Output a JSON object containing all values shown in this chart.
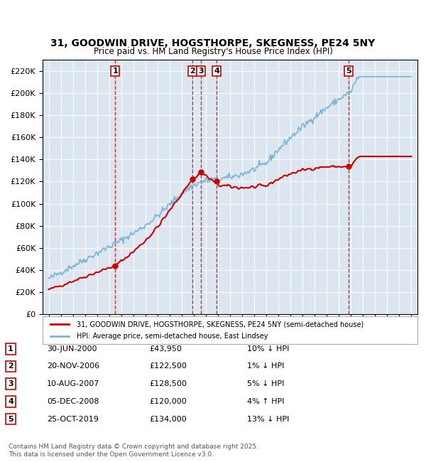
{
  "title1": "31, GOODWIN DRIVE, HOGSTHORPE, SKEGNESS, PE24 5NY",
  "title2": "Price paid vs. HM Land Registry's House Price Index (HPI)",
  "ylabel": "",
  "xlabel": "",
  "background_color": "#dce6f1",
  "plot_bg_color": "#dce6f1",
  "legend_entries": [
    "31, GOODWIN DRIVE, HOGSTHORPE, SKEGNESS, PE24 5NY (semi-detached house)",
    "HPI: Average price, semi-detached house, East Lindsey"
  ],
  "table_rows": [
    [
      "1",
      "30-JUN-2000",
      "£43,950",
      "10% ↓ HPI"
    ],
    [
      "2",
      "20-NOV-2006",
      "£122,500",
      "1% ↓ HPI"
    ],
    [
      "3",
      "10-AUG-2007",
      "£128,500",
      "5% ↓ HPI"
    ],
    [
      "4",
      "05-DEC-2008",
      "£120,000",
      "4% ↑ HPI"
    ],
    [
      "5",
      "25-OCT-2019",
      "£134,000",
      "13% ↓ HPI"
    ]
  ],
  "footnote": "Contains HM Land Registry data © Crown copyright and database right 2025.\nThis data is licensed under the Open Government Licence v3.0.",
  "sale_dates_x": [
    2000.5,
    2006.9,
    2007.6,
    2008.9,
    2019.8
  ],
  "sale_prices_y": [
    43950,
    122500,
    128500,
    120000,
    134000
  ],
  "sale_labels": [
    "1",
    "2",
    "3",
    "4",
    "5"
  ],
  "vline_color": "#cc0000",
  "sale_marker_color": "#cc0000",
  "hpi_line_color": "#7ab3d4",
  "price_line_color": "#cc0000",
  "ylim": [
    0,
    230000
  ],
  "xlim": [
    1994.5,
    2025.5
  ]
}
